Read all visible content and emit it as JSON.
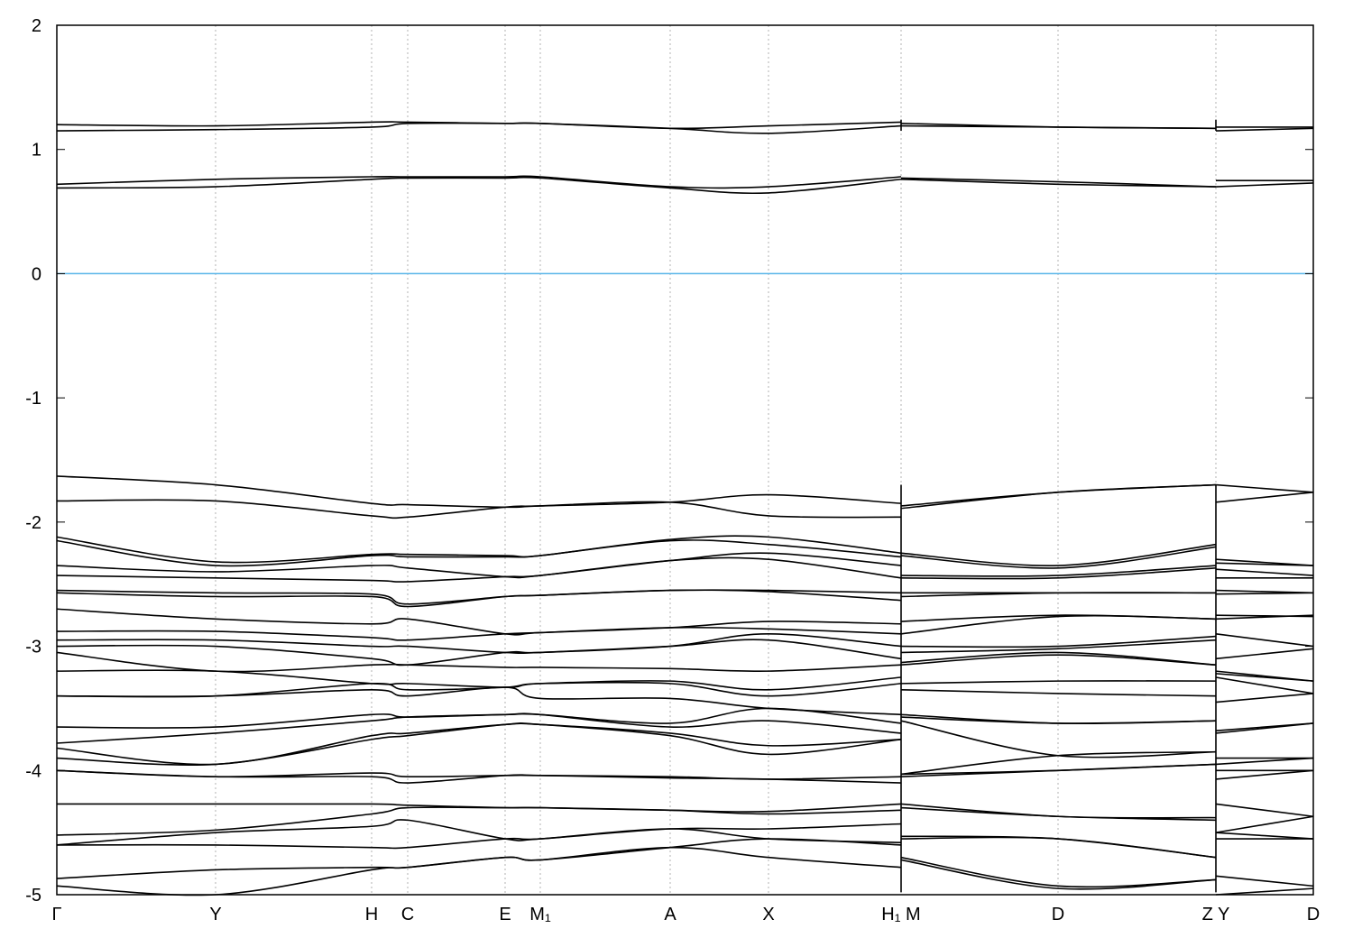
{
  "chart_data": {
    "type": "line",
    "title": "",
    "xlabel": "",
    "ylabel": "",
    "ylim": [
      -5,
      2
    ],
    "yticks": [
      2,
      1,
      0,
      -1,
      -2,
      -3,
      -4,
      -5
    ],
    "grid": "vertical dotted lines at high-symmetry points",
    "reference_line": {
      "y": 0,
      "color": "#56b4e9"
    },
    "line_color": "#000000",
    "grid_color": "#a0a0a0",
    "kpoints": [
      {
        "label": "Γ",
        "x": 0.0
      },
      {
        "label": "Y",
        "x": 1.76
      },
      {
        "label": "H",
        "x": 3.49
      },
      {
        "label": "C",
        "x": 3.89
      },
      {
        "label": "E",
        "x": 4.97
      },
      {
        "label": "M₁",
        "x": 5.36
      },
      {
        "label": "A",
        "x": 6.8
      },
      {
        "label": "X",
        "x": 7.89
      },
      {
        "label": "H₁ M",
        "x": 9.36
      },
      {
        "label": "D",
        "x": 11.1
      },
      {
        "label": "Z Y",
        "x": 12.85
      },
      {
        "label": "D",
        "x": 13.93
      }
    ],
    "xlim": [
      0,
      13.93
    ],
    "segments": [
      {
        "x": [
          0.0,
          1.76,
          3.49,
          3.89,
          4.97,
          5.36,
          6.8,
          7.89,
          9.36
        ]
      },
      {
        "x": [
          9.36,
          11.1,
          12.85
        ]
      },
      {
        "x": [
          12.85,
          13.93
        ]
      }
    ],
    "bands": [
      [
        [
          1.2,
          1.19,
          1.22,
          1.22,
          1.21,
          1.21,
          1.17,
          1.19,
          1.22
        ],
        [
          1.21,
          1.18,
          1.17
        ],
        [
          1.18,
          1.18
        ]
      ],
      [
        [
          1.15,
          1.16,
          1.18,
          1.21,
          1.21,
          1.21,
          1.17,
          1.13,
          1.19
        ],
        [
          1.19,
          1.18,
          1.17
        ],
        [
          1.15,
          1.17
        ]
      ],
      [
        [
          0.72,
          0.76,
          0.78,
          0.78,
          0.78,
          0.78,
          0.7,
          0.7,
          0.78
        ],
        [
          0.77,
          0.74,
          0.7
        ],
        [
          0.75,
          0.75
        ]
      ],
      [
        [
          0.69,
          0.7,
          0.76,
          0.77,
          0.77,
          0.77,
          0.69,
          0.65,
          0.76
        ],
        [
          0.76,
          0.72,
          0.7
        ],
        [
          0.7,
          0.73
        ]
      ],
      [
        [
          -1.63,
          -1.7,
          -1.85,
          -1.86,
          -1.88,
          -1.87,
          -1.84,
          -1.78,
          -1.85
        ],
        [
          -1.87,
          -1.76,
          -1.7
        ],
        [
          -1.7,
          -1.76
        ]
      ],
      [
        [
          -1.83,
          -1.83,
          -1.95,
          -1.96,
          -1.88,
          -1.87,
          -1.84,
          -1.95,
          -1.96
        ],
        [
          -1.89,
          -1.76,
          -1.7
        ],
        [
          -1.84,
          -1.76
        ]
      ],
      [
        [
          -2.12,
          -2.32,
          -2.26,
          -2.26,
          -2.27,
          -2.27,
          -2.14,
          -2.12,
          -2.25
        ],
        [
          -2.25,
          -2.35,
          -2.18
        ],
        [
          -2.3,
          -2.35
        ]
      ],
      [
        [
          -2.15,
          -2.35,
          -2.27,
          -2.28,
          -2.28,
          -2.27,
          -2.15,
          -2.18,
          -2.28
        ],
        [
          -2.27,
          -2.37,
          -2.2
        ],
        [
          -2.33,
          -2.35
        ]
      ],
      [
        [
          -2.35,
          -2.4,
          -2.35,
          -2.37,
          -2.44,
          -2.43,
          -2.31,
          -2.25,
          -2.35
        ],
        [
          -2.43,
          -2.43,
          -2.35
        ],
        [
          -2.38,
          -2.43
        ]
      ],
      [
        [
          -2.43,
          -2.45,
          -2.47,
          -2.48,
          -2.44,
          -2.43,
          -2.31,
          -2.3,
          -2.45
        ],
        [
          -2.45,
          -2.45,
          -2.37
        ],
        [
          -2.45,
          -2.45
        ]
      ],
      [
        [
          -2.55,
          -2.57,
          -2.58,
          -2.66,
          -2.6,
          -2.59,
          -2.55,
          -2.55,
          -2.57
        ],
        [
          -2.57,
          -2.57,
          -2.57
        ],
        [
          -2.55,
          -2.57
        ]
      ],
      [
        [
          -2.57,
          -2.6,
          -2.6,
          -2.68,
          -2.6,
          -2.59,
          -2.55,
          -2.56,
          -2.63
        ],
        [
          -2.6,
          -2.57,
          -2.57
        ],
        [
          -2.58,
          -2.57
        ]
      ],
      [
        [
          -2.7,
          -2.78,
          -2.82,
          -2.78,
          -2.9,
          -2.89,
          -2.85,
          -2.8,
          -2.82
        ],
        [
          -2.8,
          -2.75,
          -2.78
        ],
        [
          -2.78,
          -2.75
        ]
      ],
      [
        [
          -2.88,
          -2.88,
          -2.93,
          -2.95,
          -2.9,
          -2.89,
          -2.85,
          -2.86,
          -2.9
        ],
        [
          -2.9,
          -2.76,
          -2.78
        ],
        [
          -2.75,
          -2.76
        ]
      ],
      [
        [
          -2.95,
          -2.95,
          -3.0,
          -3.0,
          -3.05,
          -3.05,
          -3.0,
          -2.9,
          -3.0
        ],
        [
          -3.0,
          -3.0,
          -2.92
        ],
        [
          -2.9,
          -3.0
        ]
      ],
      [
        [
          -3.0,
          -3.0,
          -3.1,
          -3.15,
          -3.05,
          -3.05,
          -3.0,
          -2.95,
          -3.1
        ],
        [
          -3.05,
          -3.02,
          -2.95
        ],
        [
          -3.1,
          -3.02
        ]
      ],
      [
        [
          -3.05,
          -3.2,
          -3.15,
          -3.15,
          -3.17,
          -3.17,
          -3.18,
          -3.2,
          -3.15
        ],
        [
          -3.13,
          -3.05,
          -3.15
        ],
        [
          -3.2,
          -3.28
        ]
      ],
      [
        [
          -3.2,
          -3.2,
          -3.3,
          -3.3,
          -3.33,
          -3.3,
          -3.28,
          -3.35,
          -3.25
        ],
        [
          -3.15,
          -3.07,
          -3.15
        ],
        [
          -3.22,
          -3.28
        ]
      ],
      [
        [
          -3.4,
          -3.4,
          -3.3,
          -3.35,
          -3.33,
          -3.3,
          -3.3,
          -3.4,
          -3.3
        ],
        [
          -3.3,
          -3.28,
          -3.28
        ],
        [
          -3.25,
          -3.38
        ]
      ],
      [
        [
          -3.4,
          -3.4,
          -3.35,
          -3.4,
          -3.33,
          -3.42,
          -3.42,
          -3.5,
          -3.55
        ],
        [
          -3.35,
          -3.38,
          -3.4
        ],
        [
          -3.45,
          -3.38
        ]
      ],
      [
        [
          -3.65,
          -3.65,
          -3.55,
          -3.57,
          -3.55,
          -3.55,
          -3.62,
          -3.5,
          -3.62
        ],
        [
          -3.55,
          -3.62,
          -3.6
        ],
        [
          -3.68,
          -3.62
        ]
      ],
      [
        [
          -3.78,
          -3.7,
          -3.6,
          -3.57,
          -3.55,
          -3.55,
          -3.65,
          -3.6,
          -3.7
        ],
        [
          -3.57,
          -3.62,
          -3.6
        ],
        [
          -3.7,
          -3.62
        ]
      ],
      [
        [
          -3.82,
          -3.95,
          -3.72,
          -3.7,
          -3.63,
          -3.63,
          -3.7,
          -3.8,
          -3.75
        ],
        [
          -3.6,
          -3.88,
          -3.85
        ],
        [
          -3.9,
          -3.9
        ]
      ],
      [
        [
          -3.9,
          -3.95,
          -3.75,
          -3.72,
          -3.63,
          -3.63,
          -3.72,
          -3.87,
          -3.75
        ],
        [
          -4.03,
          -3.88,
          -3.85
        ],
        [
          -3.95,
          -3.9
        ]
      ],
      [
        [
          -4.0,
          -4.05,
          -4.02,
          -4.05,
          -4.04,
          -4.04,
          -4.05,
          -4.07,
          -4.05
        ],
        [
          -4.03,
          -4.0,
          -3.95
        ],
        [
          -4.0,
          -4.0
        ]
      ],
      [
        [
          -4.0,
          -4.05,
          -4.05,
          -4.1,
          -4.04,
          -4.04,
          -4.06,
          -4.07,
          -4.1
        ],
        [
          -4.05,
          -4.0,
          -3.95
        ],
        [
          -4.07,
          -4.0
        ]
      ],
      [
        [
          -4.27,
          -4.27,
          -4.27,
          -4.28,
          -4.3,
          -4.3,
          -4.32,
          -4.33,
          -4.27
        ],
        [
          -4.27,
          -4.37,
          -4.38
        ],
        [
          -4.27,
          -4.37
        ]
      ],
      [
        [
          -4.52,
          -4.48,
          -4.35,
          -4.3,
          -4.3,
          -4.3,
          -4.32,
          -4.35,
          -4.32
        ],
        [
          -4.3,
          -4.37,
          -4.4
        ],
        [
          -4.5,
          -4.37
        ]
      ],
      [
        [
          -4.6,
          -4.5,
          -4.45,
          -4.4,
          -4.55,
          -4.55,
          -4.47,
          -4.47,
          -4.43
        ],
        [
          -4.53,
          -4.55,
          -4.7
        ],
        [
          -4.5,
          -4.55
        ]
      ],
      [
        [
          -4.6,
          -4.6,
          -4.62,
          -4.62,
          -4.55,
          -4.55,
          -4.47,
          -4.55,
          -4.58
        ],
        [
          -4.55,
          -4.55,
          -4.7
        ],
        [
          -4.55,
          -4.55
        ]
      ],
      [
        [
          -4.87,
          -4.8,
          -4.78,
          -4.78,
          -4.7,
          -4.72,
          -4.62,
          -4.55,
          -4.6
        ],
        [
          -4.7,
          -4.93,
          -4.88
        ],
        [
          -4.85,
          -4.93
        ]
      ],
      [
        [
          -4.93,
          -5.0,
          -4.8,
          -4.78,
          -4.7,
          -4.72,
          -4.62,
          -4.7,
          -4.78
        ],
        [
          -4.72,
          -4.95,
          -4.88
        ],
        [
          -5.0,
          -4.95
        ]
      ]
    ]
  }
}
